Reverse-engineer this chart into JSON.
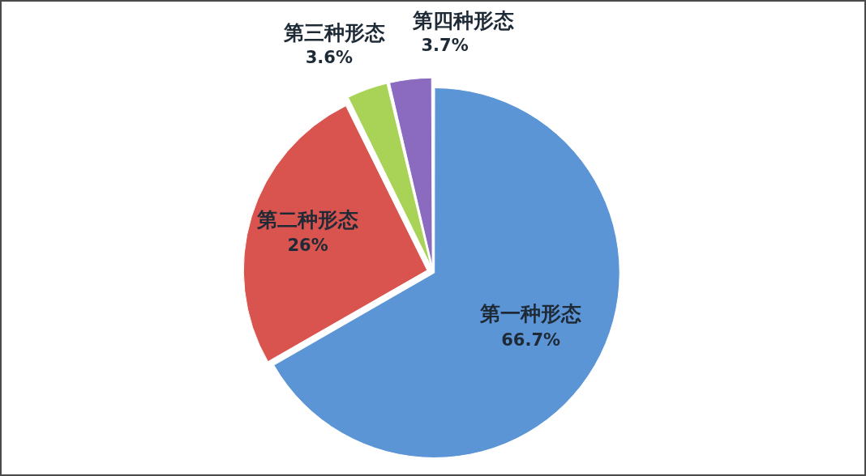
{
  "chart_data": {
    "type": "pie",
    "categories": [
      "第一种形态",
      "第二种形态",
      "第三种形态",
      "第四种形态"
    ],
    "values": [
      66.7,
      26,
      3.6,
      3.7
    ],
    "colors": [
      "#5b95d6",
      "#d9534f",
      "#a8d356",
      "#8a6bc0"
    ],
    "value_labels": [
      "66.7%",
      "26%",
      "3.6%",
      "3.7%"
    ]
  }
}
